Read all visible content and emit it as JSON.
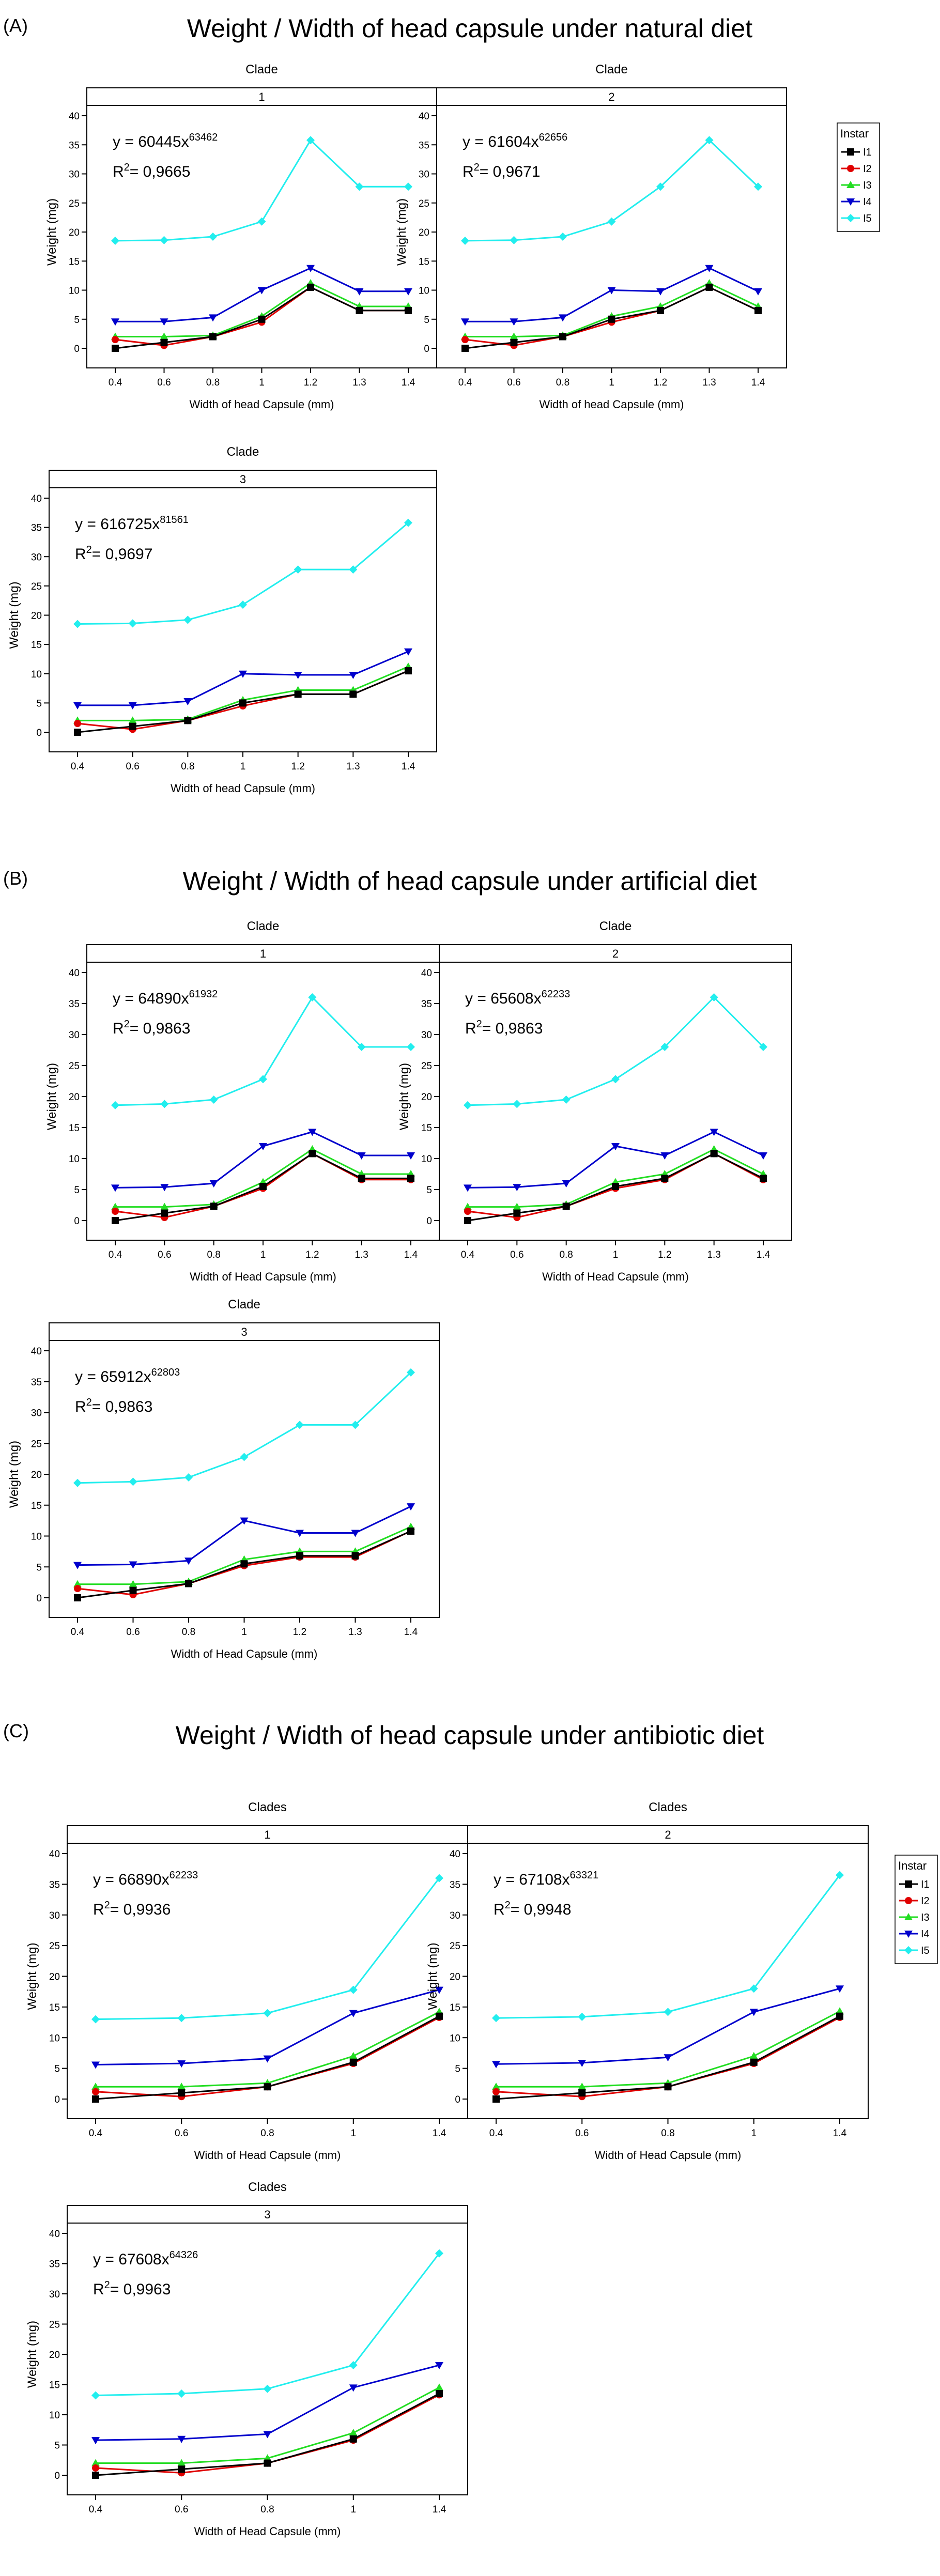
{
  "panels": [
    {
      "label": "(A)",
      "title": "Weight / Width of head capsule under natural diet",
      "facet_title": "Clade",
      "xlabel": "Width of head Capsule (mm)",
      "ylabel": "Weight (mg)",
      "legend": {
        "title": "Instar",
        "entries": [
          "I1",
          "I2",
          "I3",
          "I4",
          "I5"
        ]
      }
    },
    {
      "label": "(B)",
      "title": "Weight / Width of head capsule under artificial diet",
      "facet_title": "Clade",
      "xlabel": "Width of Head Capsule (mm)",
      "ylabel": "Weight (mg)",
      "legend": null
    },
    {
      "label": "(C)",
      "title": "Weight / Width of head capsule under antibiotic diet",
      "facet_title": "Clades",
      "xlabel": "Width of Head Capsule (mm)",
      "ylabel": "Weight (mg)",
      "legend": {
        "title": "Instar",
        "entries": [
          "I1",
          "I2",
          "I3",
          "I4",
          "I5"
        ]
      }
    }
  ],
  "colors": {
    "I1": "#000000",
    "I2": "#e00000",
    "I3": "#22dd22",
    "I4": "#0000cc",
    "I5": "#22eeee"
  },
  "chart_data": [
    {
      "type": "line",
      "panel": "(A)",
      "clade": "1",
      "equation": "y = 60445x",
      "exponent": "63462",
      "r2": "0,9665",
      "x": [
        "0.4",
        "0.6",
        "0.8",
        "1",
        "1.2",
        "1.3",
        "1.4"
      ],
      "ylim": [
        0,
        40
      ],
      "yticks": [
        0,
        5,
        10,
        15,
        20,
        25,
        30,
        35,
        40
      ],
      "series": [
        {
          "name": "I1",
          "values": [
            0,
            1,
            2,
            5,
            10.5,
            6.5,
            6.5
          ]
        },
        {
          "name": "I2",
          "values": [
            1.5,
            0.5,
            2,
            4.5,
            10.5,
            6.5,
            6.5
          ]
        },
        {
          "name": "I3",
          "values": [
            2,
            2,
            2.2,
            5.5,
            11.2,
            7.2,
            7.2
          ]
        },
        {
          "name": "I4",
          "values": [
            4.6,
            4.6,
            5.3,
            10,
            13.8,
            9.8,
            9.8
          ]
        },
        {
          "name": "I5",
          "values": [
            18.5,
            18.6,
            19.2,
            21.8,
            35.8,
            27.8,
            27.8
          ]
        }
      ]
    },
    {
      "type": "line",
      "panel": "(A)",
      "clade": "2",
      "equation": "y = 61604x",
      "exponent": "62656",
      "r2": "0,9671",
      "x": [
        "0.4",
        "0.6",
        "0.8",
        "1",
        "1.2",
        "1.3",
        "1.4"
      ],
      "ylim": [
        0,
        40
      ],
      "yticks": [
        0,
        5,
        10,
        15,
        20,
        25,
        30,
        35,
        40
      ],
      "series": [
        {
          "name": "I1",
          "values": [
            0,
            1,
            2,
            5,
            6.5,
            10.5,
            6.5
          ]
        },
        {
          "name": "I2",
          "values": [
            1.5,
            0.5,
            2,
            4.5,
            6.5,
            10.5,
            6.5
          ]
        },
        {
          "name": "I3",
          "values": [
            2,
            2,
            2.2,
            5.5,
            7.2,
            11.2,
            7.2
          ]
        },
        {
          "name": "I4",
          "values": [
            4.6,
            4.6,
            5.3,
            10,
            9.8,
            13.8,
            9.8
          ]
        },
        {
          "name": "I5",
          "values": [
            18.5,
            18.6,
            19.2,
            21.8,
            27.8,
            35.8,
            27.8
          ]
        }
      ]
    },
    {
      "type": "line",
      "panel": "(A)",
      "clade": "3",
      "equation": "y = 616725x",
      "exponent": "81561",
      "r2": "0,9697",
      "x": [
        "0.4",
        "0.6",
        "0.8",
        "1",
        "1.2",
        "1.3",
        "1.4"
      ],
      "ylim": [
        0,
        40
      ],
      "yticks": [
        0,
        5,
        10,
        15,
        20,
        25,
        30,
        35,
        40
      ],
      "series": [
        {
          "name": "I1",
          "values": [
            0,
            1,
            2,
            5,
            6.5,
            6.5,
            10.5
          ]
        },
        {
          "name": "I2",
          "values": [
            1.5,
            0.5,
            2,
            4.5,
            6.5,
            6.5,
            10.5
          ]
        },
        {
          "name": "I3",
          "values": [
            2,
            2,
            2.2,
            5.5,
            7.2,
            7.2,
            11.2
          ]
        },
        {
          "name": "I4",
          "values": [
            4.6,
            4.6,
            5.3,
            10,
            9.8,
            9.8,
            13.8
          ]
        },
        {
          "name": "I5",
          "values": [
            18.5,
            18.6,
            19.2,
            21.8,
            27.8,
            27.8,
            35.8
          ]
        }
      ]
    },
    {
      "type": "line",
      "panel": "(B)",
      "clade": "1",
      "equation": "y = 64890x",
      "exponent": "61932",
      "r2": "0,9863",
      "x": [
        "0.4",
        "0.6",
        "0.8",
        "1",
        "1.2",
        "1.3",
        "1.4"
      ],
      "ylim": [
        0,
        40
      ],
      "yticks": [
        0,
        5,
        10,
        15,
        20,
        25,
        30,
        35,
        40
      ],
      "series": [
        {
          "name": "I1",
          "values": [
            0,
            1.2,
            2.3,
            5.5,
            10.8,
            6.8,
            6.8
          ]
        },
        {
          "name": "I2",
          "values": [
            1.5,
            0.5,
            2.3,
            5.2,
            10.8,
            6.6,
            6.6
          ]
        },
        {
          "name": "I3",
          "values": [
            2.2,
            2.2,
            2.6,
            6.2,
            11.5,
            7.5,
            7.5
          ]
        },
        {
          "name": "I4",
          "values": [
            5.3,
            5.4,
            6,
            12,
            14.3,
            10.5,
            10.5
          ]
        },
        {
          "name": "I5",
          "values": [
            18.6,
            18.8,
            19.5,
            22.8,
            36,
            28,
            28
          ]
        }
      ]
    },
    {
      "type": "line",
      "panel": "(B)",
      "clade": "2",
      "equation": "y = 65608x",
      "exponent": "62233",
      "r2": "0,9863",
      "x": [
        "0.4",
        "0.6",
        "0.8",
        "1",
        "1.2",
        "1.3",
        "1.4"
      ],
      "ylim": [
        0,
        40
      ],
      "yticks": [
        0,
        5,
        10,
        15,
        20,
        25,
        30,
        35,
        40
      ],
      "series": [
        {
          "name": "I1",
          "values": [
            0,
            1.2,
            2.3,
            5.5,
            6.8,
            10.8,
            6.8
          ]
        },
        {
          "name": "I2",
          "values": [
            1.5,
            0.5,
            2.3,
            5.2,
            6.6,
            10.8,
            6.6
          ]
        },
        {
          "name": "I3",
          "values": [
            2.2,
            2.2,
            2.6,
            6.2,
            7.5,
            11.5,
            7.5
          ]
        },
        {
          "name": "I4",
          "values": [
            5.3,
            5.4,
            6,
            12,
            10.5,
            14.3,
            10.5
          ]
        },
        {
          "name": "I5",
          "values": [
            18.6,
            18.8,
            19.5,
            22.8,
            28,
            36,
            28
          ]
        }
      ]
    },
    {
      "type": "line",
      "panel": "(B)",
      "clade": "3",
      "equation": "y = 65912x",
      "exponent": "62803",
      "r2": "0,9863",
      "x": [
        "0.4",
        "0.6",
        "0.8",
        "1",
        "1.2",
        "1.3",
        "1.4"
      ],
      "ylim": [
        0,
        40
      ],
      "yticks": [
        0,
        5,
        10,
        15,
        20,
        25,
        30,
        35,
        40
      ],
      "series": [
        {
          "name": "I1",
          "values": [
            0,
            1.2,
            2.3,
            5.5,
            6.8,
            6.8,
            10.8
          ]
        },
        {
          "name": "I2",
          "values": [
            1.5,
            0.5,
            2.3,
            5.2,
            6.6,
            6.6,
            10.8
          ]
        },
        {
          "name": "I3",
          "values": [
            2.2,
            2.2,
            2.6,
            6.2,
            7.5,
            7.5,
            11.5
          ]
        },
        {
          "name": "I4",
          "values": [
            5.3,
            5.4,
            6,
            12.5,
            10.5,
            10.5,
            14.8
          ]
        },
        {
          "name": "I5",
          "values": [
            18.6,
            18.8,
            19.5,
            22.8,
            28,
            28,
            36.5
          ]
        }
      ]
    },
    {
      "type": "line",
      "panel": "(C)",
      "clade": "1",
      "equation": "y = 66890x",
      "exponent": "62233",
      "r2": "0,9936",
      "x": [
        "0.4",
        "0.6",
        "0.8",
        "1",
        "1.4"
      ],
      "ylim": [
        0,
        40
      ],
      "yticks": [
        0,
        5,
        10,
        15,
        20,
        25,
        30,
        35,
        40
      ],
      "series": [
        {
          "name": "I1",
          "values": [
            0,
            1,
            2,
            6,
            13.5
          ]
        },
        {
          "name": "I2",
          "values": [
            1.2,
            0.4,
            2,
            5.8,
            13.3
          ]
        },
        {
          "name": "I3",
          "values": [
            2,
            2,
            2.6,
            7,
            14.2
          ]
        },
        {
          "name": "I4",
          "values": [
            5.6,
            5.8,
            6.6,
            14,
            17.8
          ]
        },
        {
          "name": "I5",
          "values": [
            13,
            13.2,
            14,
            17.8,
            36
          ]
        }
      ]
    },
    {
      "type": "line",
      "panel": "(C)",
      "clade": "2",
      "equation": "y = 67108x",
      "exponent": "63321",
      "r2": "0,9948",
      "x": [
        "0.4",
        "0.6",
        "0.8",
        "1",
        "1.4"
      ],
      "ylim": [
        0,
        40
      ],
      "yticks": [
        0,
        5,
        10,
        15,
        20,
        25,
        30,
        35,
        40
      ],
      "series": [
        {
          "name": "I1",
          "values": [
            0,
            1,
            2,
            6,
            13.5
          ]
        },
        {
          "name": "I2",
          "values": [
            1.2,
            0.4,
            2,
            5.8,
            13.3
          ]
        },
        {
          "name": "I3",
          "values": [
            2,
            2,
            2.6,
            7,
            14.3
          ]
        },
        {
          "name": "I4",
          "values": [
            5.7,
            5.9,
            6.8,
            14.2,
            18
          ]
        },
        {
          "name": "I5",
          "values": [
            13.2,
            13.4,
            14.2,
            18,
            36.5
          ]
        }
      ]
    },
    {
      "type": "line",
      "panel": "(C)",
      "clade": "3",
      "equation": "y = 67608x",
      "exponent": "64326",
      "r2": "0,9963",
      "x": [
        "0.4",
        "0.6",
        "0.8",
        "1",
        "1.4"
      ],
      "ylim": [
        0,
        40
      ],
      "yticks": [
        0,
        5,
        10,
        15,
        20,
        25,
        30,
        35,
        40
      ],
      "series": [
        {
          "name": "I1",
          "values": [
            0,
            1,
            2,
            6,
            13.5
          ]
        },
        {
          "name": "I2",
          "values": [
            1.2,
            0.4,
            2,
            5.8,
            13.3
          ]
        },
        {
          "name": "I3",
          "values": [
            2,
            2,
            2.8,
            7,
            14.5
          ]
        },
        {
          "name": "I4",
          "values": [
            5.8,
            6,
            6.8,
            14.5,
            18.2
          ]
        },
        {
          "name": "I5",
          "values": [
            13.2,
            13.5,
            14.3,
            18.2,
            36.7
          ]
        }
      ]
    }
  ]
}
